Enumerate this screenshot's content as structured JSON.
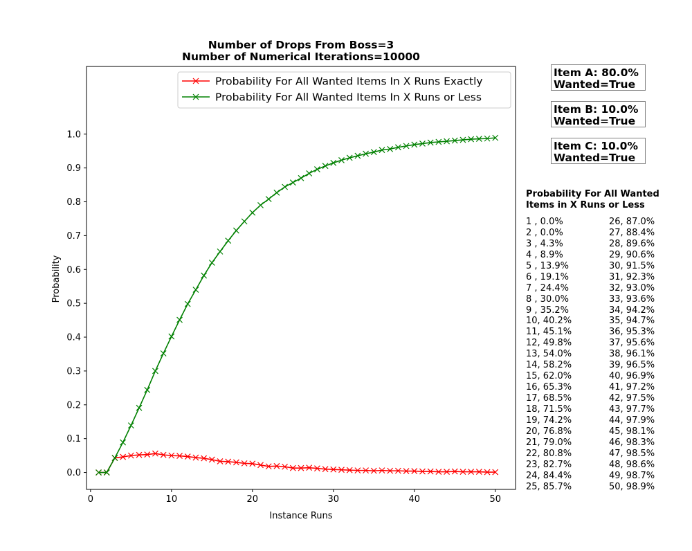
{
  "chart_data": {
    "type": "line",
    "title": "Number of Drops From Boss=3\nNumber of Numerical Iterations=10000",
    "title_lines": [
      "Number of Drops From Boss=3",
      "Number of Numerical Iterations=10000"
    ],
    "xlabel": "Instance Runs",
    "ylabel": "Probability",
    "xlim": [
      -0.5,
      52.5
    ],
    "ylim": [
      -0.05,
      1.2
    ],
    "xticks": [
      0,
      10,
      20,
      30,
      40,
      50
    ],
    "yticks": [
      0.0,
      0.1,
      0.2,
      0.3,
      0.4,
      0.5,
      0.6,
      0.7,
      0.8,
      0.9,
      1.0
    ],
    "ytick_labels": [
      "0.0",
      "0.1",
      "0.2",
      "0.3",
      "0.4",
      "0.5",
      "0.6",
      "0.7",
      "0.8",
      "0.9",
      "1.0"
    ],
    "grid": false,
    "legend_position": "top-right",
    "marker": "x",
    "x": [
      1,
      2,
      3,
      4,
      5,
      6,
      7,
      8,
      9,
      10,
      11,
      12,
      13,
      14,
      15,
      16,
      17,
      18,
      19,
      20,
      21,
      22,
      23,
      24,
      25,
      26,
      27,
      28,
      29,
      30,
      31,
      32,
      33,
      34,
      35,
      36,
      37,
      38,
      39,
      40,
      41,
      42,
      43,
      44,
      45,
      46,
      47,
      48,
      49,
      50
    ],
    "series": [
      {
        "name": "Probability For All Wanted Items In X Runs Exactly",
        "color": "#ff0000",
        "values": [
          0.0,
          0.0,
          0.043,
          0.046,
          0.05,
          0.052,
          0.053,
          0.056,
          0.052,
          0.05,
          0.049,
          0.047,
          0.044,
          0.042,
          0.038,
          0.033,
          0.032,
          0.03,
          0.027,
          0.026,
          0.022,
          0.018,
          0.019,
          0.017,
          0.013,
          0.013,
          0.014,
          0.012,
          0.01,
          0.009,
          0.008,
          0.007,
          0.006,
          0.006,
          0.005,
          0.006,
          0.005,
          0.005,
          0.004,
          0.004,
          0.003,
          0.003,
          0.002,
          0.002,
          0.003,
          0.002,
          0.002,
          0.002,
          0.001,
          0.001
        ]
      },
      {
        "name": "Probability For All Wanted Items In X Runs or Less",
        "color": "#008000",
        "values": [
          0.0,
          0.0,
          0.043,
          0.089,
          0.139,
          0.191,
          0.244,
          0.3,
          0.352,
          0.402,
          0.451,
          0.498,
          0.54,
          0.582,
          0.62,
          0.653,
          0.685,
          0.715,
          0.742,
          0.768,
          0.79,
          0.808,
          0.827,
          0.844,
          0.857,
          0.87,
          0.884,
          0.896,
          0.906,
          0.915,
          0.923,
          0.93,
          0.936,
          0.942,
          0.947,
          0.953,
          0.956,
          0.961,
          0.965,
          0.969,
          0.972,
          0.975,
          0.977,
          0.979,
          0.981,
          0.983,
          0.985,
          0.986,
          0.987,
          0.989
        ]
      }
    ]
  },
  "items": [
    {
      "line1": "Item A: 80.0%",
      "line2": "Wanted=True"
    },
    {
      "line1": "Item B: 10.0%",
      "line2": "Wanted=True"
    },
    {
      "line1": "Item C: 10.0%",
      "line2": "Wanted=True"
    }
  ],
  "table": {
    "title_line1": "Probability For All Wanted",
    "title_line2": "Items in X Runs or Less",
    "col1": [
      "1 , 0.0%",
      "2 , 0.0%",
      "3 , 4.3%",
      "4 , 8.9%",
      "5 , 13.9%",
      "6 , 19.1%",
      "7 , 24.4%",
      "8 , 30.0%",
      "9 , 35.2%",
      "10, 40.2%",
      "11, 45.1%",
      "12, 49.8%",
      "13, 54.0%",
      "14, 58.2%",
      "15, 62.0%",
      "16, 65.3%",
      "17, 68.5%",
      "18, 71.5%",
      "19, 74.2%",
      "20, 76.8%",
      "21, 79.0%",
      "22, 80.8%",
      "23, 82.7%",
      "24, 84.4%",
      "25, 85.7%"
    ],
    "col2": [
      "26, 87.0%",
      "27, 88.4%",
      "28, 89.6%",
      "29, 90.6%",
      "30, 91.5%",
      "31, 92.3%",
      "32, 93.0%",
      "33, 93.6%",
      "34, 94.2%",
      "35, 94.7%",
      "36, 95.3%",
      "37, 95.6%",
      "38, 96.1%",
      "39, 96.5%",
      "40, 96.9%",
      "41, 97.2%",
      "42, 97.5%",
      "43, 97.7%",
      "44, 97.9%",
      "45, 98.1%",
      "46, 98.3%",
      "47, 98.5%",
      "48, 98.6%",
      "49, 98.7%",
      "50, 98.9%"
    ]
  }
}
